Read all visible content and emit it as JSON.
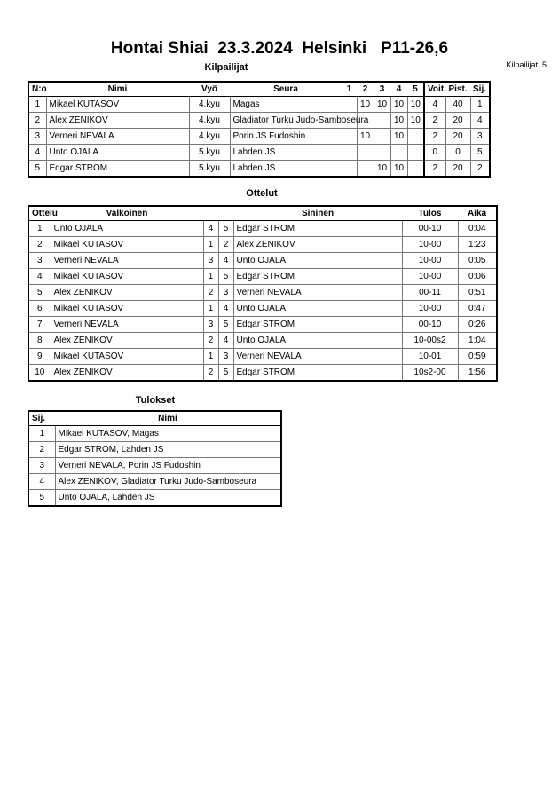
{
  "title": "Hontai Shiai  23.3.2024  Helsinki   P11-26,6",
  "competitors_heading": "Kilpailijat",
  "competitors_count": "Kilpailijat: 5",
  "competitors": {
    "headers": [
      "N:o",
      "Nimi",
      "Vyö",
      "Seura",
      "1",
      "2",
      "3",
      "4",
      "5",
      "Voit.",
      "Pist.",
      "Sij."
    ],
    "rows": [
      [
        "1",
        "Mikael KUTASOV",
        "4.kyu",
        "Magas",
        "",
        "10",
        "10",
        "10",
        "10",
        "4",
        "40",
        "1"
      ],
      [
        "2",
        "Alex ZENIKOV",
        "4.kyu",
        "Gladiator Turku Judo-Samboseura",
        "",
        "",
        "",
        "10",
        "10",
        "2",
        "20",
        "4"
      ],
      [
        "3",
        "Verneri NEVALA",
        "4.kyu",
        "Porin JS Fudoshin",
        "",
        "10",
        "",
        "10",
        "",
        "2",
        "20",
        "3"
      ],
      [
        "4",
        "Unto OJALA",
        "5.kyu",
        "Lahden JS",
        "",
        "",
        "",
        "",
        "",
        "0",
        "0",
        "5"
      ],
      [
        "5",
        "Edgar STROM",
        "5.kyu",
        "Lahden JS",
        "",
        "",
        "10",
        "10",
        "",
        "2",
        "20",
        "2"
      ]
    ]
  },
  "matches_heading": "Ottelut",
  "matches": {
    "headers": [
      "Ottelu",
      "Valkoinen",
      "",
      "",
      "Sininen",
      "Tulos",
      "Aika"
    ],
    "rows": [
      [
        "1",
        "Unto OJALA",
        "4",
        "5",
        "Edgar STROM",
        "00-10",
        "0:04"
      ],
      [
        "2",
        "Mikael KUTASOV",
        "1",
        "2",
        "Alex ZENIKOV",
        "10-00",
        "1:23"
      ],
      [
        "3",
        "Verneri NEVALA",
        "3",
        "4",
        "Unto OJALA",
        "10-00",
        "0:05"
      ],
      [
        "4",
        "Mikael KUTASOV",
        "1",
        "5",
        "Edgar STROM",
        "10-00",
        "0:06"
      ],
      [
        "5",
        "Alex ZENIKOV",
        "2",
        "3",
        "Verneri NEVALA",
        "00-11",
        "0:51"
      ],
      [
        "6",
        "Mikael KUTASOV",
        "1",
        "4",
        "Unto OJALA",
        "10-00",
        "0:47"
      ],
      [
        "7",
        "Verneri NEVALA",
        "3",
        "5",
        "Edgar STROM",
        "00-10",
        "0:26"
      ],
      [
        "8",
        "Alex ZENIKOV",
        "2",
        "4",
        "Unto OJALA",
        "10-00s2",
        "1:04"
      ],
      [
        "9",
        "Mikael KUTASOV",
        "1",
        "3",
        "Verneri NEVALA",
        "10-01",
        "0:59"
      ],
      [
        "10",
        "Alex ZENIKOV",
        "2",
        "5",
        "Edgar STROM",
        "10s2-00",
        "1:56"
      ]
    ]
  },
  "results_heading": "Tulokset",
  "results": {
    "headers": [
      "Sij.",
      "Nimi"
    ],
    "rows": [
      [
        "1",
        "Mikael KUTASOV, Magas"
      ],
      [
        "2",
        "Edgar STROM, Lahden JS"
      ],
      [
        "3",
        "Verneri NEVALA, Porin JS Fudoshin"
      ],
      [
        "4",
        "Alex ZENIKOV, Gladiator Turku Judo-Samboseura"
      ],
      [
        "5",
        "Unto OJALA, Lahden JS"
      ]
    ]
  }
}
